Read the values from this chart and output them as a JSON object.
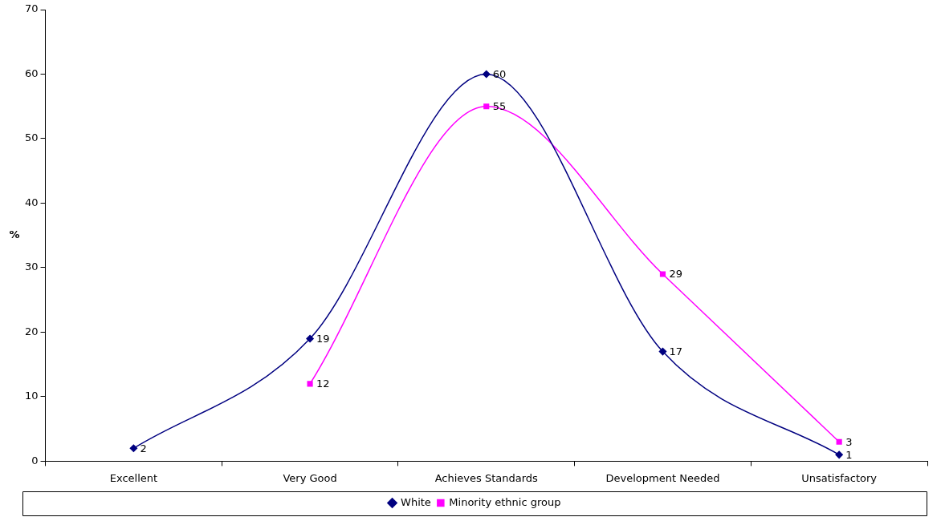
{
  "chart_data": {
    "type": "line",
    "ylabel": "%",
    "categories": [
      "Excellent",
      "Very Good",
      "Achieves Standards",
      "Development Needed",
      "Unsatisfactory"
    ],
    "series": [
      {
        "name": "White",
        "color": "#000080",
        "marker": "diamond",
        "values": [
          2,
          19,
          60,
          17,
          1
        ]
      },
      {
        "name": "Minority ethnic group",
        "color": "#ff00ff",
        "marker": "square",
        "values": [
          null,
          12,
          55,
          29,
          3
        ]
      }
    ],
    "ylim": [
      0,
      70
    ],
    "yticks": [
      0,
      10,
      20,
      30,
      40,
      50,
      60,
      70
    ],
    "grid": false,
    "legend": "bottom",
    "data_labels": true
  }
}
